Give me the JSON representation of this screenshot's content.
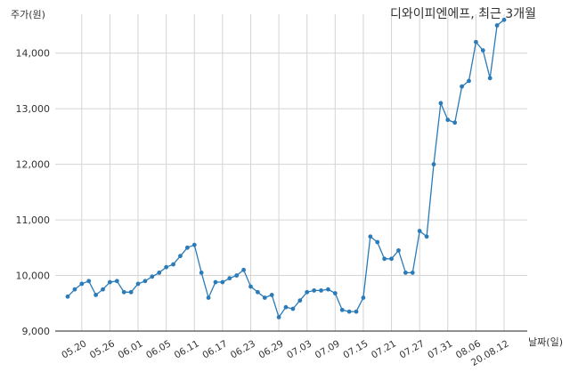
{
  "chart_data": {
    "type": "line",
    "title": "디와이피엔에프, 최근 3개월",
    "ylabel": "주가(원)",
    "xlabel": "날짜(일)",
    "ylim": [
      9000,
      14700
    ],
    "yticks": [
      9000,
      10000,
      11000,
      12000,
      13000,
      14000
    ],
    "ytick_labels": [
      "9,000",
      "10,000",
      "11,000",
      "12,000",
      "13,000",
      "14,000"
    ],
    "xtick_labels": [
      "05.20",
      "05.26",
      "06.01",
      "06.05",
      "06.11",
      "06.17",
      "06.23",
      "06.29",
      "07.03",
      "07.09",
      "07.15",
      "07.21",
      "07.27",
      "07.31",
      "08.06",
      "20.08.12"
    ],
    "xtick_indices": [
      2,
      6,
      10,
      14,
      18,
      22,
      26,
      30,
      34,
      38,
      42,
      46,
      50,
      54,
      58,
      62
    ],
    "grid": true,
    "series_color": "#2b7bb9",
    "values": [
      9620,
      9750,
      9850,
      9900,
      9650,
      9750,
      9880,
      9900,
      9700,
      9700,
      9850,
      9900,
      9980,
      10050,
      10150,
      10200,
      10350,
      10500,
      10550,
      10050,
      9600,
      9880,
      9880,
      9950,
      10000,
      10100,
      9800,
      9700,
      9600,
      9650,
      9250,
      9430,
      9400,
      9550,
      9700,
      9730,
      9730,
      9750,
      9680,
      9380,
      9350,
      9350,
      9600,
      10700,
      10600,
      10300,
      10300,
      10450,
      10050,
      10050,
      10800,
      10700,
      12000,
      13100,
      12800,
      12750,
      13400,
      13500,
      14200,
      14050,
      13550,
      14500,
      14600
    ]
  }
}
